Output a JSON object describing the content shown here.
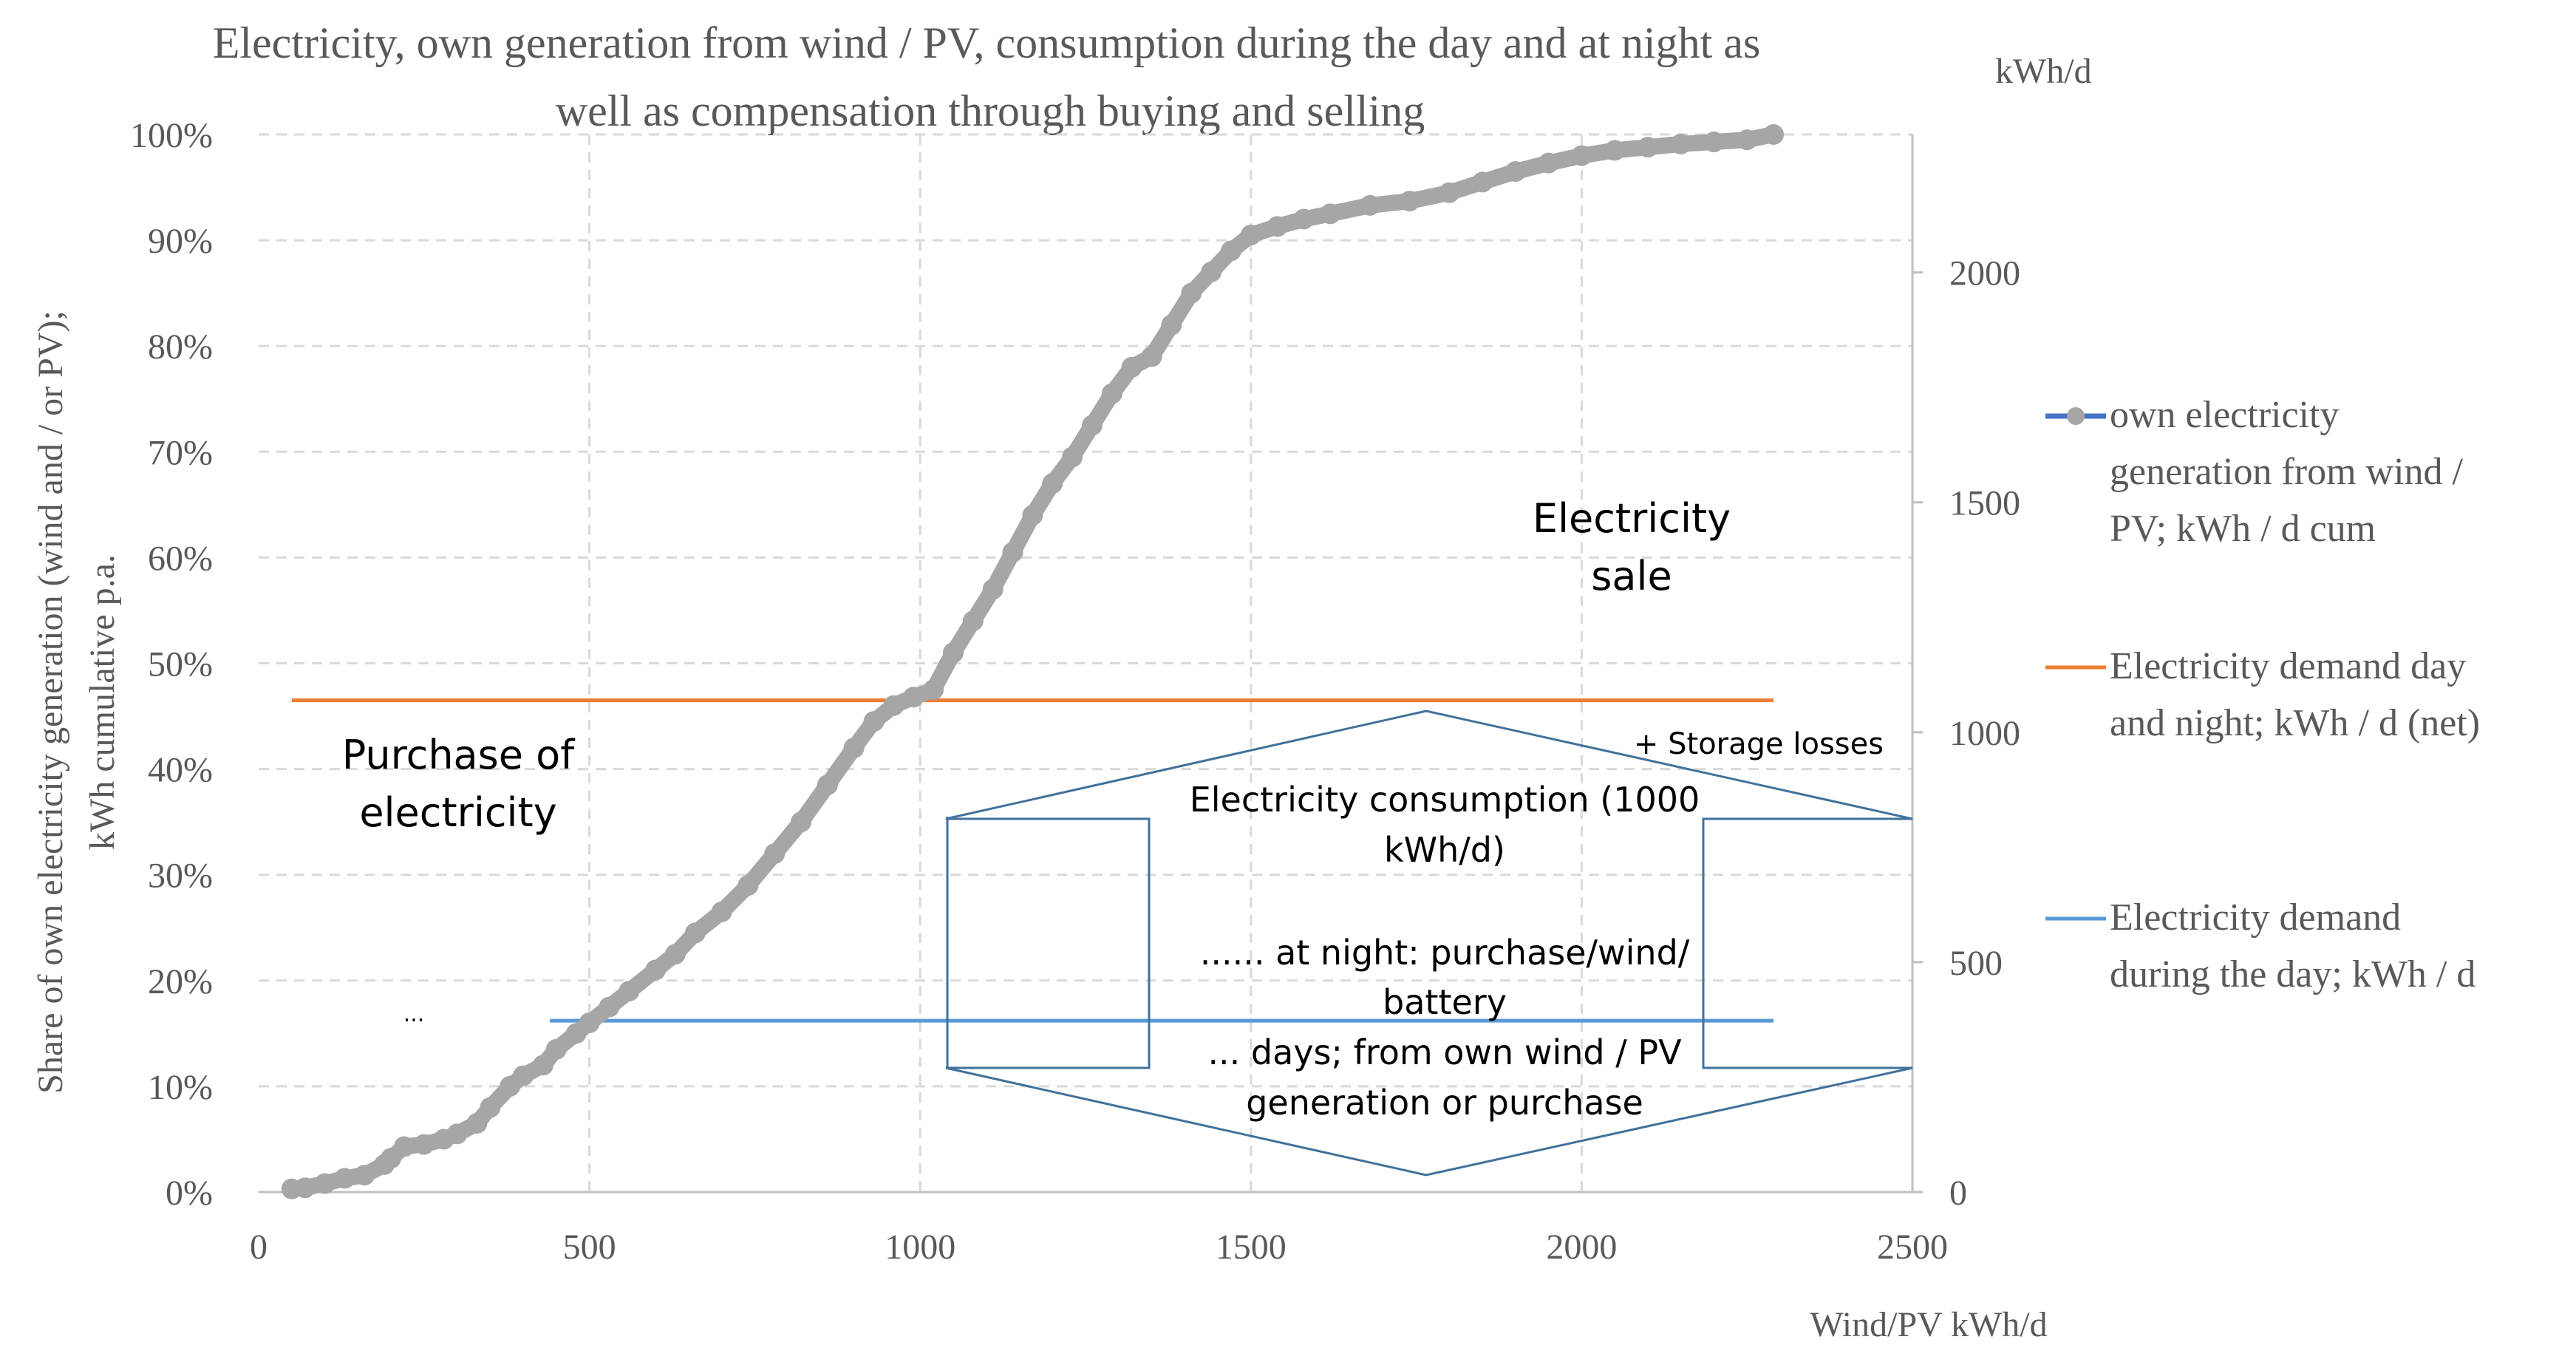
{
  "chart_data": {
    "type": "line",
    "title": "Electricity, own generation from wind / PV, consumption during the day and at night as well as compensation through buying and selling",
    "title_lines": [
      "Electricity, own generation from wind / PV, consumption during the day and at night as",
      "well as compensation through buying and selling"
    ],
    "xlabel": "Wind/PV kWh/d",
    "ylabel_left_lines": [
      "Share of own electricity generation (wind and / or PV);",
      "kWh cumulative p.a."
    ],
    "ylabel_right": "kWh/d",
    "xlim": [
      0,
      2500
    ],
    "ylim_left": [
      0,
      100
    ],
    "ylim_right": [
      0,
      2300
    ],
    "x_ticks": [
      "0",
      "500",
      "1000",
      "1500",
      "2000",
      "2500"
    ],
    "y_left_ticks": [
      "0%",
      "10%",
      "20%",
      "30%",
      "40%",
      "50%",
      "60%",
      "70%",
      "80%",
      "90%",
      "100%"
    ],
    "y_right_ticks": [
      "0",
      "500",
      "1000",
      "1500",
      "2000"
    ],
    "grid": true,
    "legend_position": "right",
    "series": [
      {
        "name": "own electricity generation from wind / PV; kWh / d cum",
        "legend_lines": [
          "own electricity",
          "generation from wind /",
          "PV; kWh / d cum"
        ],
        "axis": "left",
        "color": "#a6a6a6",
        "points": [
          [
            50,
            0.3
          ],
          [
            70,
            0.4
          ],
          [
            100,
            0.8
          ],
          [
            130,
            1.3
          ],
          [
            160,
            1.6
          ],
          [
            190,
            2.6
          ],
          [
            200,
            3.2
          ],
          [
            220,
            4.3
          ],
          [
            250,
            4.5
          ],
          [
            280,
            5.0
          ],
          [
            300,
            5.5
          ],
          [
            330,
            6.5
          ],
          [
            350,
            8.0
          ],
          [
            380,
            10.0
          ],
          [
            400,
            11.0
          ],
          [
            430,
            12.0
          ],
          [
            450,
            13.5
          ],
          [
            480,
            15.0
          ],
          [
            500,
            16.0
          ],
          [
            530,
            17.5
          ],
          [
            560,
            19.0
          ],
          [
            600,
            21.0
          ],
          [
            630,
            22.5
          ],
          [
            660,
            24.5
          ],
          [
            700,
            26.5
          ],
          [
            740,
            29.0
          ],
          [
            780,
            32.0
          ],
          [
            820,
            35.0
          ],
          [
            860,
            38.5
          ],
          [
            900,
            42.0
          ],
          [
            930,
            44.5
          ],
          [
            960,
            46.0
          ],
          [
            990,
            46.8
          ],
          [
            1020,
            47.5
          ],
          [
            1050,
            51.0
          ],
          [
            1080,
            54.0
          ],
          [
            1110,
            57.0
          ],
          [
            1140,
            60.5
          ],
          [
            1170,
            64.0
          ],
          [
            1200,
            67.0
          ],
          [
            1230,
            69.5
          ],
          [
            1260,
            72.5
          ],
          [
            1290,
            75.5
          ],
          [
            1320,
            78.0
          ],
          [
            1350,
            79.0
          ],
          [
            1380,
            82.0
          ],
          [
            1410,
            85.0
          ],
          [
            1440,
            87.0
          ],
          [
            1470,
            89.0
          ],
          [
            1500,
            90.5
          ],
          [
            1540,
            91.3
          ],
          [
            1580,
            92.0
          ],
          [
            1620,
            92.5
          ],
          [
            1680,
            93.3
          ],
          [
            1740,
            93.7
          ],
          [
            1800,
            94.5
          ],
          [
            1850,
            95.5
          ],
          [
            1900,
            96.5
          ],
          [
            1950,
            97.3
          ],
          [
            2000,
            98.0
          ],
          [
            2050,
            98.5
          ],
          [
            2100,
            98.8
          ],
          [
            2150,
            99.1
          ],
          [
            2200,
            99.3
          ],
          [
            2250,
            99.5
          ],
          [
            2290,
            100.0
          ]
        ]
      },
      {
        "name": "Electricity demand day and night; kWh / d (net)",
        "legend_lines": [
          "Electricity demand day",
          "and night; kWh / d (net)"
        ],
        "axis": "left",
        "color": "#ed7d31",
        "x_range": [
          50,
          2290
        ],
        "value": 46.5
      },
      {
        "name": "Electricity demand during the day; kWh / d",
        "legend_lines": [
          "Electricity demand",
          "during the day; kWh / d"
        ],
        "axis": "left",
        "color": "#5b9bd5",
        "x_range": [
          440,
          2290
        ],
        "value": 16.2
      }
    ],
    "annotations": {
      "sale_lines": [
        "Electricity",
        "sale"
      ],
      "purchase_lines": [
        "Purchase of",
        "electricity"
      ],
      "storage": "+ Storage losses",
      "consumption_lines": [
        "Electricity consumption (1000",
        "kWh/d)"
      ],
      "night_lines": [
        "...... at night: purchase/wind/",
        "battery"
      ],
      "days_lines": [
        "... days; from own wind / PV",
        "generation or purchase"
      ],
      "ellipsis": "..."
    }
  }
}
